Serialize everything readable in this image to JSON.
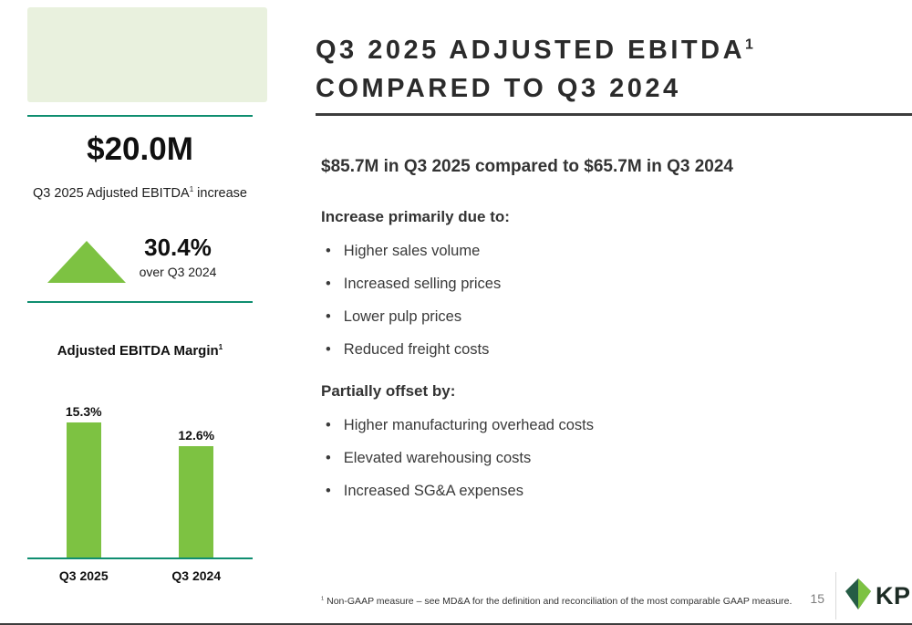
{
  "header": {
    "title_line1": "Q3 2025 ADJUSTED EBITDA",
    "title_sup": "1",
    "title_line2": "COMPARED TO Q3 2024"
  },
  "left_panel": {
    "stat_value": "$20.0M",
    "stat_caption_pre": "Q3 2025 Adjusted EBITDA",
    "stat_caption_sup": "1",
    "stat_caption_post": " increase",
    "delta_value": "30.4%",
    "delta_caption": "over Q3 2024",
    "chart_title": "Adjusted EBITDA Margin",
    "chart_title_sup": "1"
  },
  "chart_data": {
    "type": "bar",
    "title": "Adjusted EBITDA Margin",
    "categories": [
      "Q3 2025",
      "Q3 2024"
    ],
    "values": [
      15.3,
      12.6
    ],
    "value_labels": [
      "15.3%",
      "12.6%"
    ],
    "unit": "%",
    "ylim": [
      0,
      16
    ],
    "bar_color": "#7dc242",
    "grid": false,
    "legend": false
  },
  "main": {
    "headline": "$85.7M in Q3 2025 compared to $65.7M in Q3 2024",
    "sections": [
      {
        "heading": "Increase primarily due to:",
        "bullets": [
          "Higher sales volume",
          "Increased selling prices",
          "Lower pulp prices",
          "Reduced freight costs"
        ]
      },
      {
        "heading": "Partially offset by:",
        "bullets": [
          "Higher manufacturing overhead costs",
          "Elevated warehousing costs",
          "Increased SG&A expenses"
        ]
      }
    ]
  },
  "footer": {
    "footnote_sup": "1",
    "footnote_text": " Non-GAAP measure – see MD&A for the definition and reconciliation of the most comparable GAAP measure.",
    "page_number": "15",
    "logo_text": "KP"
  },
  "colors": {
    "accent_green": "#7dc242",
    "teal_line": "#0f8e70",
    "pale_green_block": "#e9f1de",
    "title_text": "#2b2b2b"
  }
}
